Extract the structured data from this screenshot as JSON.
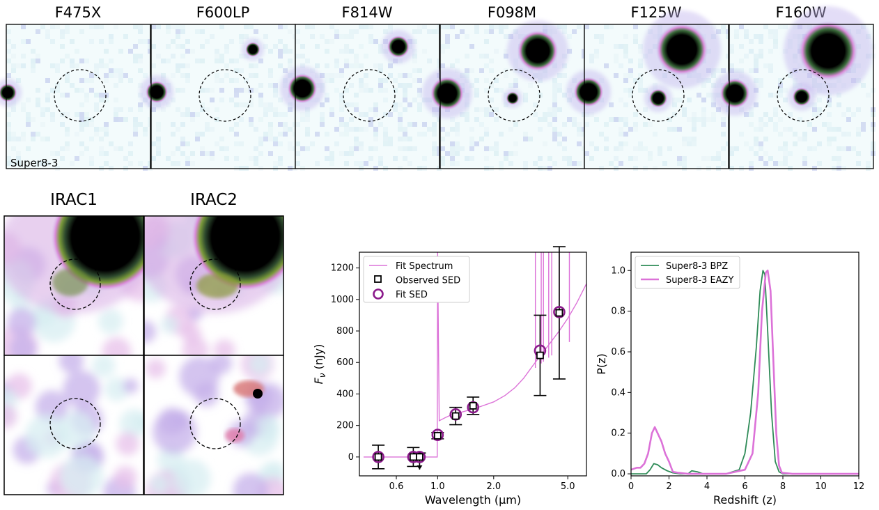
{
  "stamps": {
    "bands": [
      "F475X",
      "F600LP",
      "F814W",
      "F098M",
      "F125W",
      "F160W"
    ],
    "object_label": "Super8-3",
    "irac": [
      "IRAC1",
      "IRAC2"
    ]
  },
  "colors": {
    "fit_spectrum": "#dc72d8",
    "fit_sed": "#8b1a8b",
    "observed": "#000000",
    "bpz": "#2e8b57",
    "eazy": "#dc72d8",
    "stamp_bg": "#f3fbfc",
    "stamp_noise": "#cde7ef",
    "stamp_mid": "#c6a0e0"
  },
  "chart_data": [
    {
      "type": "line",
      "xlabel": "Wavelength (μm)",
      "ylabel_main": "F",
      "ylabel_sub": "ν",
      "ylabel_unit": "(nJy)",
      "xscale": "log",
      "xlim": [
        0.38,
        6.3
      ],
      "ylim": [
        -120,
        1300
      ],
      "xticks": [
        0.6,
        1.0,
        2.0,
        5.0
      ],
      "xtick_labels": [
        "0.6",
        "1.0",
        "2.0",
        "5.0"
      ],
      "yticks": [
        0,
        200,
        400,
        600,
        800,
        1000,
        1200
      ],
      "legend_position": "top-left",
      "legend": [
        "Fit Spectrum",
        "Observed SED",
        "Fit SED"
      ],
      "fit_spectrum": {
        "x": [
          0.4,
          0.99,
          0.995,
          1.0,
          1.02,
          1.1,
          1.2,
          1.3,
          1.5,
          1.7,
          2.0,
          2.3,
          2.6,
          2.9,
          3.2,
          3.6,
          4.0,
          4.5,
          5.0,
          5.6,
          6.3
        ],
        "y": [
          0,
          0,
          0,
          1300,
          230,
          250,
          270,
          280,
          300,
          320,
          350,
          390,
          440,
          500,
          570,
          650,
          720,
          800,
          880,
          980,
          1100
        ]
      },
      "spectrum_spikes": [
        {
          "x": 3.35,
          "top": 1300
        },
        {
          "x": 3.6,
          "top": 1300
        },
        {
          "x": 3.7,
          "top": 1300
        },
        {
          "x": 3.95,
          "top": 1300
        },
        {
          "x": 4.1,
          "top": 1300
        },
        {
          "x": 4.5,
          "top": 1300
        },
        {
          "x": 5.1,
          "top": 1300
        }
      ],
      "observed": {
        "x": [
          0.48,
          0.74,
          0.8,
          1.0,
          1.25,
          1.55,
          3.55,
          4.5
        ],
        "y": [
          0,
          0,
          0,
          135,
          260,
          325,
          645,
          915
        ],
        "err": [
          75,
          60,
          25,
          20,
          55,
          55,
          255,
          420
        ],
        "upper_limit": [
          false,
          false,
          true,
          false,
          false,
          false,
          false,
          false
        ]
      },
      "fit_sed": {
        "x": [
          0.48,
          0.74,
          0.8,
          1.0,
          1.25,
          1.55,
          3.55,
          4.5
        ],
        "y": [
          0,
          0,
          0,
          140,
          270,
          315,
          675,
          920
        ]
      }
    },
    {
      "type": "line",
      "xlabel": "Redshift (z)",
      "ylabel": "P(z)",
      "xlim": [
        0,
        12
      ],
      "ylim": [
        -0.01,
        1.09
      ],
      "xticks": [
        0,
        2,
        4,
        6,
        8,
        10,
        12
      ],
      "yticks": [
        0.0,
        0.2,
        0.4,
        0.6,
        0.8,
        1.0
      ],
      "ytick_labels": [
        "0.0",
        "0.2",
        "0.4",
        "0.6",
        "0.8",
        "1.0"
      ],
      "legend_position": "top-left",
      "series": [
        {
          "name": "Super8-3 BPZ",
          "x": [
            0,
            0.5,
            0.8,
            1.0,
            1.2,
            1.4,
            1.6,
            1.9,
            2.2,
            2.6,
            3.0,
            3.2,
            3.5,
            3.8,
            4.0,
            5.0,
            5.7,
            6.0,
            6.3,
            6.6,
            6.8,
            6.95,
            7.05,
            7.2,
            7.4,
            7.6,
            7.8,
            8.0,
            9,
            10,
            12
          ],
          "y": [
            0,
            0,
            0.0,
            0.02,
            0.05,
            0.045,
            0.03,
            0.015,
            0.005,
            0,
            0,
            0.015,
            0.01,
            0,
            0,
            0,
            0.02,
            0.1,
            0.3,
            0.62,
            0.9,
            1.0,
            0.98,
            0.7,
            0.3,
            0.06,
            0.01,
            0,
            0,
            0,
            0
          ]
        },
        {
          "name": "Super8-3 EAZY",
          "x": [
            0,
            0.3,
            0.5,
            0.7,
            0.9,
            1.1,
            1.25,
            1.4,
            1.6,
            1.8,
            2.0,
            2.2,
            2.5,
            3.0,
            4.0,
            5.0,
            6.0,
            6.4,
            6.7,
            6.9,
            7.1,
            7.2,
            7.35,
            7.5,
            7.65,
            7.8,
            7.95,
            8.5,
            10,
            12
          ],
          "y": [
            0.02,
            0.03,
            0.03,
            0.05,
            0.1,
            0.2,
            0.23,
            0.2,
            0.16,
            0.1,
            0.06,
            0.01,
            0.005,
            0,
            0,
            0,
            0.02,
            0.1,
            0.4,
            0.8,
            0.99,
            1.0,
            0.9,
            0.55,
            0.2,
            0.04,
            0.005,
            0,
            0,
            0
          ]
        }
      ]
    }
  ]
}
